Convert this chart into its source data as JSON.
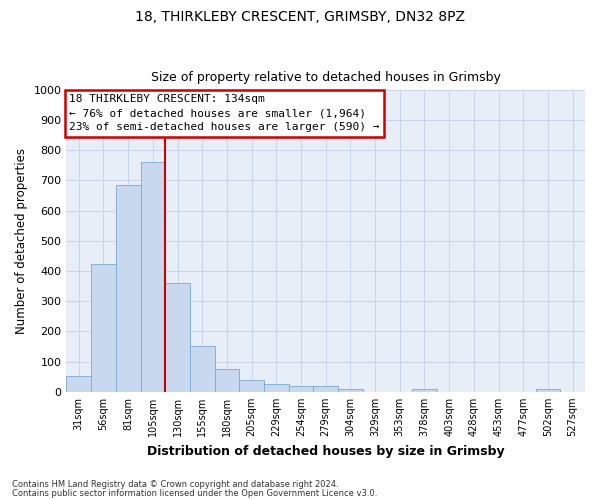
{
  "title1": "18, THIRKLEBY CRESCENT, GRIMSBY, DN32 8PZ",
  "title2": "Size of property relative to detached houses in Grimsby",
  "xlabel": "Distribution of detached houses by size in Grimsby",
  "ylabel": "Number of detached properties",
  "footer1": "Contains HM Land Registry data © Crown copyright and database right 2024.",
  "footer2": "Contains public sector information licensed under the Open Government Licence v3.0.",
  "annotation_title": "18 THIRKLEBY CRESCENT: 134sqm",
  "annotation_line1": "← 76% of detached houses are smaller (1,964)",
  "annotation_line2": "23% of semi-detached houses are larger (590) →",
  "bar_labels": [
    "31sqm",
    "56sqm",
    "81sqm",
    "105sqm",
    "130sqm",
    "155sqm",
    "180sqm",
    "205sqm",
    "229sqm",
    "254sqm",
    "279sqm",
    "304sqm",
    "329sqm",
    "353sqm",
    "378sqm",
    "403sqm",
    "428sqm",
    "453sqm",
    "477sqm",
    "502sqm",
    "527sqm"
  ],
  "bar_values": [
    52,
    422,
    685,
    760,
    360,
    153,
    74,
    40,
    27,
    18,
    18,
    10,
    0,
    0,
    10,
    0,
    0,
    0,
    0,
    10,
    0
  ],
  "bar_color": "#c8d8ee",
  "bar_edge_color": "#7aaad0",
  "vline_index": 4,
  "vline_color": "#cc0000",
  "ylim": [
    0,
    1000
  ],
  "yticks": [
    0,
    100,
    200,
    300,
    400,
    500,
    600,
    700,
    800,
    900,
    1000
  ],
  "annotation_box_facecolor": "#ffffff",
  "annotation_box_edgecolor": "#cc0000",
  "grid_color": "#c8d4e8",
  "plot_bg_color": "#e8eef8",
  "fig_bg_color": "#ffffff"
}
